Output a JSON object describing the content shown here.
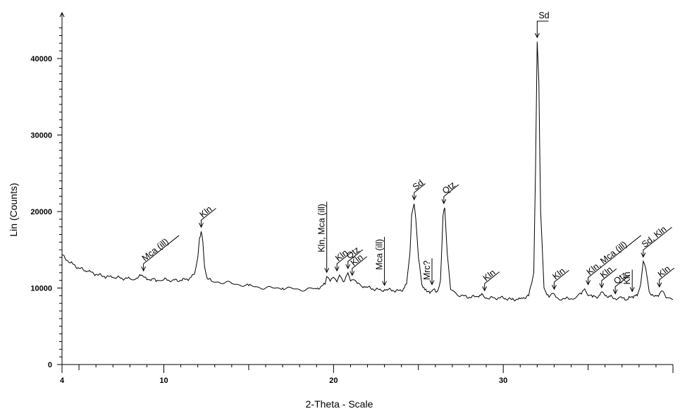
{
  "chart_data": {
    "type": "line",
    "title": "",
    "xlabel": "2-Theta - Scale",
    "ylabel": "Lin (Counts)",
    "xlim": [
      4,
      40
    ],
    "ylim": [
      0,
      45000
    ],
    "x_ticks": [
      4,
      10,
      20,
      30
    ],
    "y_ticks": [
      0,
      10000,
      20000,
      30000,
      40000
    ],
    "x_minor_step": 1,
    "y_minor_step": 1000,
    "grid": false,
    "series": [
      {
        "x": [
          4,
          4.5,
          5,
          5.5,
          6,
          6.5,
          7,
          7.5,
          8,
          8.4,
          8.7,
          8.85,
          9.0,
          9.3,
          9.6,
          10,
          10.5,
          11,
          11.5,
          11.8,
          12.0,
          12.1,
          12.2,
          12.3,
          12.4,
          12.55,
          12.8,
          13.2,
          14,
          15,
          16,
          17,
          18,
          19,
          19.5,
          19.6,
          19.8,
          20.0,
          20.2,
          20.35,
          20.6,
          20.85,
          21.0,
          21.2,
          21.4,
          21.8,
          22.3,
          22.8,
          23.0,
          23.5,
          24.0,
          24.3,
          24.5,
          24.6,
          24.75,
          24.85,
          25.0,
          25.2,
          25.5,
          25.8,
          25.95,
          26.1,
          26.3,
          26.45,
          26.55,
          26.7,
          26.9,
          27.5,
          28.0,
          28.5,
          28.8,
          29.0,
          29.5,
          30,
          30.5,
          31,
          31.5,
          31.8,
          31.9,
          32.0,
          32.1,
          32.2,
          32.4,
          32.7,
          32.9,
          33.1,
          33.5,
          34,
          34.6,
          34.8,
          35.0,
          35.2,
          35.5,
          35.8,
          36.0,
          36.3,
          36.6,
          37.0,
          37.3,
          37.6,
          37.9,
          38.1,
          38.25,
          38.4,
          38.6,
          38.9,
          39.2,
          39.4,
          39.6,
          40
        ],
        "y": [
          14300,
          13300,
          12600,
          12200,
          11800,
          11500,
          11400,
          11300,
          11200,
          11300,
          11700,
          11400,
          11100,
          11200,
          11000,
          11100,
          11000,
          11000,
          11200,
          11800,
          14000,
          16500,
          17400,
          16000,
          12800,
          11300,
          10900,
          10800,
          10600,
          10300,
          10000,
          10000,
          9800,
          9900,
          10500,
          11500,
          10900,
          11400,
          10800,
          11700,
          10800,
          12000,
          10900,
          11100,
          10600,
          10200,
          9900,
          9700,
          9800,
          9700,
          9600,
          10500,
          14500,
          19500,
          21000,
          19000,
          14000,
          10500,
          9500,
          9600,
          9900,
          9500,
          11000,
          19500,
          20500,
          14500,
          9800,
          9000,
          8800,
          8900,
          9100,
          8700,
          8700,
          8700,
          8500,
          8600,
          9000,
          12000,
          25000,
          42200,
          37000,
          20000,
          10000,
          8800,
          9300,
          8800,
          8600,
          8600,
          9200,
          9900,
          9000,
          9100,
          8700,
          9500,
          9000,
          8900,
          8600,
          8700,
          8500,
          8900,
          9000,
          10500,
          13500,
          12500,
          9500,
          8900,
          9200,
          9600,
          8700,
          8500
        ]
      }
    ],
    "annotations": [
      {
        "label": "Mca (ill)",
        "x": 8.8,
        "y": 11700,
        "style": "leader"
      },
      {
        "label": "Kln",
        "x": 12.2,
        "y": 17400,
        "style": "leader"
      },
      {
        "label": "Kln, Mca (ill)",
        "x": 19.6,
        "y": 11500,
        "style": "vertical"
      },
      {
        "label": "Kln",
        "x": 20.2,
        "y": 11700,
        "style": "leader"
      },
      {
        "label": "Qtz",
        "x": 20.85,
        "y": 12000,
        "style": "leader"
      },
      {
        "label": "Kln",
        "x": 21.1,
        "y": 11100,
        "style": "leader"
      },
      {
        "label": "Mca (ill)",
        "x": 23.0,
        "y": 9800,
        "style": "vertical"
      },
      {
        "label": "Sd",
        "x": 24.75,
        "y": 21000,
        "style": "leader"
      },
      {
        "label": "Mrc?",
        "x": 25.8,
        "y": 9900,
        "style": "vertical"
      },
      {
        "label": "Qtz",
        "x": 26.5,
        "y": 20500,
        "style": "leader"
      },
      {
        "label": "Kln",
        "x": 28.9,
        "y": 9100,
        "style": "leader"
      },
      {
        "label": "Sd",
        "x": 32.0,
        "y": 42200,
        "style": "flag"
      },
      {
        "label": "Kln",
        "x": 33.0,
        "y": 9300,
        "style": "leader"
      },
      {
        "label": "Kln, Mca (ill)",
        "x": 35.0,
        "y": 9900,
        "style": "leader"
      },
      {
        "label": "Kln",
        "x": 35.8,
        "y": 9500,
        "style": "leader"
      },
      {
        "label": "Qtz",
        "x": 36.6,
        "y": 8700,
        "style": "leader"
      },
      {
        "label": "Kln",
        "x": 37.6,
        "y": 9000,
        "style": "vertical"
      },
      {
        "label": "Sd, Kln",
        "x": 38.25,
        "y": 13500,
        "style": "leader"
      },
      {
        "label": "Kln",
        "x": 39.2,
        "y": 9600,
        "style": "leader"
      }
    ]
  }
}
